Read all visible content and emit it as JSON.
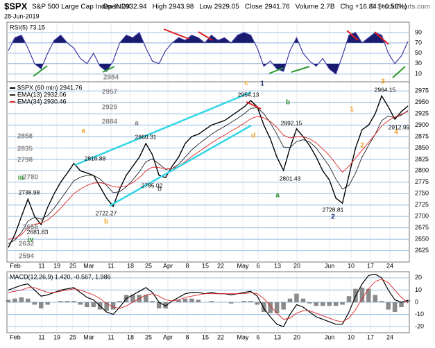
{
  "header": {
    "symbol": "$SPX",
    "name": "S&P 500 Large Cap Index INDX",
    "date": "28-Jun-2019",
    "copyright": "© StockCharts.com",
    "stats": [
      {
        "label": "Open",
        "value": "2932.94"
      },
      {
        "label": "High",
        "value": "2943.98"
      },
      {
        "label": "Low",
        "value": "2929.05"
      },
      {
        "label": "Close",
        "value": "2941.76"
      },
      {
        "label": "Volume",
        "value": "2.7B"
      },
      {
        "label": "Chg",
        "value": "+16.84 (+0.58%)"
      }
    ]
  },
  "x_labels": [
    "Feb",
    "11",
    "19",
    "25",
    "Mar",
    "11",
    "18",
    "25",
    "Apr",
    "8",
    "15",
    "22",
    "May",
    "6",
    "13",
    "20",
    "Jun",
    "10",
    "17",
    "24"
  ],
  "chart_data": [
    {
      "type": "line",
      "legend": "RSI(5) 73.15",
      "ylim": [
        -5,
        110
      ],
      "yticks": [
        10,
        30,
        50,
        70,
        90
      ],
      "upper_band": 70,
      "lower_band": 30,
      "band_color": "#1a1a6e",
      "grid": true,
      "series": [
        {
          "name": "RSI(5)",
          "color": "#3a3aa0",
          "values": [
            55,
            80,
            85,
            60,
            30,
            20,
            50,
            75,
            85,
            70,
            60,
            40,
            30,
            50,
            25,
            15,
            35,
            70,
            85,
            80,
            90,
            60,
            35,
            30,
            55,
            70,
            80,
            75,
            85,
            80,
            70,
            85,
            75,
            80,
            70,
            85,
            90,
            85,
            60,
            25,
            35,
            20,
            15,
            55,
            80,
            50,
            35,
            25,
            40,
            20,
            10,
            45,
            85,
            90,
            70,
            80,
            90,
            85,
            50,
            30,
            45,
            73
          ]
        }
      ]
    },
    {
      "type": "line",
      "ylim": [
        2600,
        2995
      ],
      "yticks": [
        2625,
        2650,
        2675,
        2700,
        2725,
        2750,
        2775,
        2800,
        2825,
        2850,
        2875,
        2900,
        2925,
        2950,
        2975
      ],
      "grid": true,
      "legend": [
        "$SPX (60 min) 2941.76",
        "EMA(13) 2932.06",
        "EMA(34) 2930.46"
      ],
      "series": [
        {
          "name": "$SPX (60 min)",
          "color": "#000000",
          "width": 1.4,
          "values": [
            2632,
            2660,
            2700,
            2738,
            2700,
            2682,
            2720,
            2750,
            2775,
            2795,
            2816,
            2800,
            2795,
            2790,
            2765,
            2740,
            2722,
            2760,
            2790,
            2810,
            2830,
            2860,
            2835,
            2790,
            2785,
            2810,
            2830,
            2860,
            2875,
            2880,
            2890,
            2900,
            2905,
            2910,
            2920,
            2930,
            2940,
            2954,
            2940,
            2900,
            2870,
            2830,
            2801,
            2850,
            2892,
            2875,
            2855,
            2830,
            2800,
            2780,
            2740,
            2729,
            2790,
            2850,
            2890,
            2900,
            2925,
            2964,
            2940,
            2913,
            2930,
            2942
          ]
        },
        {
          "name": "EMA(13)",
          "color": "#222222",
          "width": 0.9,
          "values": [
            2640,
            2648,
            2665,
            2690,
            2698,
            2694,
            2702,
            2718,
            2738,
            2758,
            2778,
            2786,
            2790,
            2790,
            2782,
            2768,
            2752,
            2754,
            2765,
            2780,
            2798,
            2820,
            2826,
            2815,
            2803,
            2805,
            2814,
            2830,
            2846,
            2858,
            2869,
            2880,
            2889,
            2897,
            2906,
            2915,
            2925,
            2937,
            2938,
            2925,
            2905,
            2880,
            2852,
            2851,
            2864,
            2868,
            2863,
            2850,
            2830,
            2810,
            2782,
            2760,
            2768,
            2795,
            2830,
            2856,
            2880,
            2910,
            2920,
            2916,
            2922,
            2932
          ]
        },
        {
          "name": "EMA(34)",
          "color": "#dd2222",
          "width": 0.9,
          "values": [
            2650,
            2652,
            2660,
            2675,
            2683,
            2685,
            2692,
            2704,
            2718,
            2734,
            2750,
            2760,
            2768,
            2773,
            2774,
            2771,
            2765,
            2764,
            2767,
            2774,
            2785,
            2800,
            2808,
            2807,
            2804,
            2805,
            2810,
            2820,
            2831,
            2841,
            2851,
            2861,
            2870,
            2878,
            2887,
            2895,
            2904,
            2914,
            2919,
            2916,
            2908,
            2895,
            2878,
            2872,
            2875,
            2875,
            2870,
            2861,
            2848,
            2834,
            2815,
            2797,
            2810,
            2828,
            2845,
            2862,
            2880,
            2898,
            2910,
            2918,
            2924,
            2930
          ]
        }
      ],
      "annotations": [
        {
          "text": "2984",
          "color": "#888888"
        },
        {
          "text": "2957",
          "color": "#888888"
        },
        {
          "text": "2929",
          "color": "#888888"
        },
        {
          "text": "2884",
          "color": "#888888"
        },
        {
          "text": "2858",
          "color": "#888888"
        },
        {
          "text": "2835",
          "color": "#888888"
        },
        {
          "text": "2798",
          "color": "#888888"
        },
        {
          "text": "2780",
          "color": "#888888"
        },
        {
          "text": "2656",
          "color": "#888888"
        },
        {
          "text": "2632",
          "color": "#888888"
        },
        {
          "text": "2594",
          "color": "#888888"
        },
        {
          "text": "a",
          "color": "#f0a020"
        },
        {
          "text": "c",
          "color": "#f0a020"
        },
        {
          "text": "1",
          "color": "#1a2a6e"
        },
        {
          "text": "b",
          "color": "#2a8a2a"
        },
        {
          "text": "d",
          "color": "#f0a020"
        },
        {
          "text": "a",
          "color": "#2a8a2a"
        },
        {
          "text": "2",
          "color": "#1a2a6e"
        },
        {
          "text": "1",
          "color": "#f0a020"
        },
        {
          "text": "2",
          "color": "#f0a020"
        },
        {
          "text": "3",
          "color": "#f0a020"
        },
        {
          "text": "4",
          "color": "#f0a020"
        },
        {
          "text": "iii",
          "color": "#2a8a2a"
        },
        {
          "text": "iv",
          "color": "#2a8a2a"
        },
        {
          "text": "a",
          "color": "#777777"
        },
        {
          "text": "b",
          "color": "#f0a020"
        },
        {
          "text": "b",
          "color": "#777777"
        },
        {
          "text": "2954.13",
          "color": "#000000"
        },
        {
          "text": "2892.15",
          "color": "#000000"
        },
        {
          "text": "2860.31",
          "color": "#000000"
        },
        {
          "text": "2816.88",
          "color": "#000000"
        },
        {
          "text": "2785.02",
          "color": "#000000"
        },
        {
          "text": "2738.98",
          "color": "#000000"
        },
        {
          "text": "2722.27",
          "color": "#000000"
        },
        {
          "text": "2681.83",
          "color": "#000000"
        },
        {
          "text": "2801.43",
          "color": "#000000"
        },
        {
          "text": "2728.81",
          "color": "#000000"
        },
        {
          "text": "2964.15",
          "color": "#000000"
        },
        {
          "text": "2912.99",
          "color": "#000000"
        }
      ]
    },
    {
      "type": "line",
      "legend": "MACD(12,26,9) 1.420, -0.567, 1.986",
      "ylim": [
        -25,
        25
      ],
      "yticks": [
        -20,
        -10,
        0,
        10,
        20
      ],
      "grid": true,
      "series": [
        {
          "name": "MACD",
          "color": "#000000",
          "width": 1.2,
          "values": [
            10,
            12,
            14,
            15,
            10,
            5,
            6,
            8,
            10,
            11,
            12,
            8,
            4,
            2,
            -3,
            -8,
            -10,
            -4,
            3,
            6,
            9,
            12,
            8,
            0,
            -3,
            1,
            4,
            7,
            8,
            8,
            7,
            8,
            7,
            7,
            6,
            7,
            8,
            9,
            5,
            -5,
            -12,
            -18,
            -20,
            -10,
            -2,
            -4,
            -8,
            -12,
            -14,
            -16,
            -18,
            -18,
            -8,
            5,
            15,
            22,
            23,
            20,
            10,
            2,
            0,
            1.42
          ]
        },
        {
          "name": "Signal",
          "color": "#dd2222",
          "width": 0.9,
          "values": [
            8,
            9,
            10,
            12,
            12,
            10,
            8,
            8,
            9,
            10,
            11,
            10,
            8,
            6,
            3,
            -1,
            -4,
            -5,
            -3,
            0,
            3,
            6,
            7,
            5,
            2,
            1,
            2,
            4,
            5,
            6,
            7,
            7,
            7,
            7,
            7,
            7,
            7,
            8,
            7,
            3,
            -3,
            -9,
            -14,
            -13,
            -9,
            -7,
            -7,
            -9,
            -11,
            -13,
            -15,
            -16,
            -13,
            -6,
            3,
            11,
            17,
            19,
            16,
            10,
            4,
            -0.567
          ]
        }
      ],
      "histogram": {
        "name": "Histogram",
        "color": "#8a8a8a",
        "values": [
          2,
          3,
          4,
          3,
          -2,
          -5,
          -2,
          0,
          1,
          1,
          1,
          -2,
          -4,
          -4,
          -6,
          -7,
          -6,
          1,
          6,
          6,
          6,
          6,
          1,
          -5,
          -5,
          0,
          2,
          3,
          3,
          2,
          0,
          1,
          0,
          0,
          -1,
          0,
          1,
          1,
          -2,
          -8,
          -9,
          -9,
          -6,
          3,
          7,
          3,
          -1,
          -3,
          -3,
          -3,
          -3,
          -2,
          5,
          11,
          12,
          11,
          6,
          1,
          -6,
          -8,
          -4,
          1.986
        ]
      }
    }
  ]
}
